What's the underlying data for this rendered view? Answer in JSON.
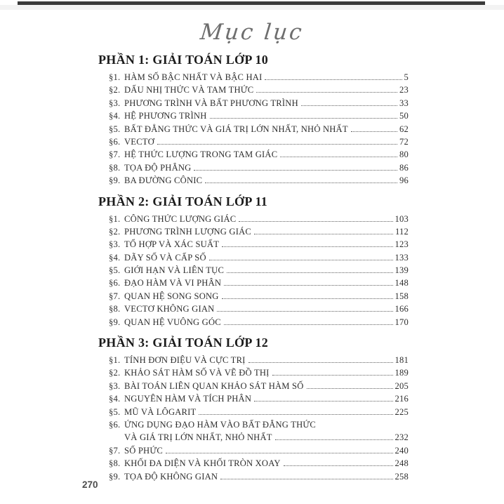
{
  "page": {
    "script_title": "Mục lục",
    "footer_page_number": "270"
  },
  "toc": {
    "parts": [
      {
        "heading": "PHẦN 1: GIẢI TOÁN LỚP 10",
        "items": [
          {
            "label": "§1.",
            "title": "HÀM SỐ BẬC NHẤT VÀ BẬC HAI",
            "page": "5"
          },
          {
            "label": "§2.",
            "title": "DẤU NHỊ THỨC VÀ TAM THỨC",
            "page": "23"
          },
          {
            "label": "§3.",
            "title": "PHƯƠNG TRÌNH VÀ BẤT PHƯƠNG TRÌNH",
            "page": "33"
          },
          {
            "label": "§4.",
            "title": "HỆ PHƯƠNG TRÌNH",
            "page": "50"
          },
          {
            "label": "§5.",
            "title": "BẤT ĐẲNG THỨC VÀ GIÁ TRỊ LỚN NHẤT, NHỎ NHẤT",
            "page": "62"
          },
          {
            "label": "§6.",
            "title": "VECTƠ",
            "page": "72"
          },
          {
            "label": "§7.",
            "title": "HỆ THỨC LƯỢNG TRONG TAM GIÁC",
            "page": "80"
          },
          {
            "label": "§8.",
            "title": "TỌA ĐỘ PHẲNG",
            "page": "86"
          },
          {
            "label": "§9.",
            "title": "BA ĐƯỜNG CÔNIC",
            "page": "96"
          }
        ]
      },
      {
        "heading": "PHẦN 2: GIẢI TOÁN LỚP 11",
        "items": [
          {
            "label": "§1.",
            "title": "CÔNG THỨC LƯỢNG GIÁC",
            "page": "103"
          },
          {
            "label": "§2.",
            "title": "PHƯƠNG TRÌNH LƯỢNG GIÁC",
            "page": "112"
          },
          {
            "label": "§3.",
            "title": "TỔ HỢP VÀ XÁC SUẤT",
            "page": "123"
          },
          {
            "label": "§4.",
            "title": "DÃY SỐ VÀ CẤP SỐ",
            "page": "133"
          },
          {
            "label": "§5.",
            "title": "GIỚI HẠN VÀ LIÊN TỤC",
            "page": "139"
          },
          {
            "label": "§6.",
            "title": "ĐẠO HÀM VÀ VI PHÂN",
            "page": "148"
          },
          {
            "label": "§7.",
            "title": "QUAN HỆ SONG SONG",
            "page": "158"
          },
          {
            "label": "§8.",
            "title": "VECTƠ KHÔNG GIAN",
            "page": "166"
          },
          {
            "label": "§9.",
            "title": "QUAN HỆ VUÔNG GÓC",
            "page": "170"
          }
        ]
      },
      {
        "heading": "PHẦN 3: GIẢI TOÁN LỚP 12",
        "items": [
          {
            "label": "§1.",
            "title": "TÍNH ĐƠN ĐIỆU VÀ CỰC TRỊ",
            "page": "181"
          },
          {
            "label": "§2.",
            "title": "KHẢO SÁT HÀM SỐ VÀ VẼ ĐỒ THỊ",
            "page": "189"
          },
          {
            "label": "§3.",
            "title": "BÀI TOÁN LIÊN QUAN KHẢO SÁT HÀM SỐ",
            "page": "205"
          },
          {
            "label": "§4.",
            "title": "NGUYÊN HÀM VÀ TÍCH PHÂN",
            "page": "216"
          },
          {
            "label": "§5.",
            "title": "MŨ VÀ LÔGARIT",
            "page": "225"
          },
          {
            "label": "§6.",
            "title": "ỨNG DỤNG ĐẠO HÀM VÀO BẤT ĐẲNG THỨC",
            "title2": "VÀ GIÁ TRỊ LỚN NHẤT, NHỎ NHẤT",
            "page": "232"
          },
          {
            "label": "§7.",
            "title": "SỐ PHỨC",
            "page": "240"
          },
          {
            "label": "§8.",
            "title": "KHỐI ĐA DIỆN VÀ KHỐI TRÒN XOAY",
            "page": "248"
          },
          {
            "label": "§9.",
            "title": "TỌA ĐỘ KHÔNG GIAN",
            "page": "258"
          }
        ]
      }
    ]
  }
}
